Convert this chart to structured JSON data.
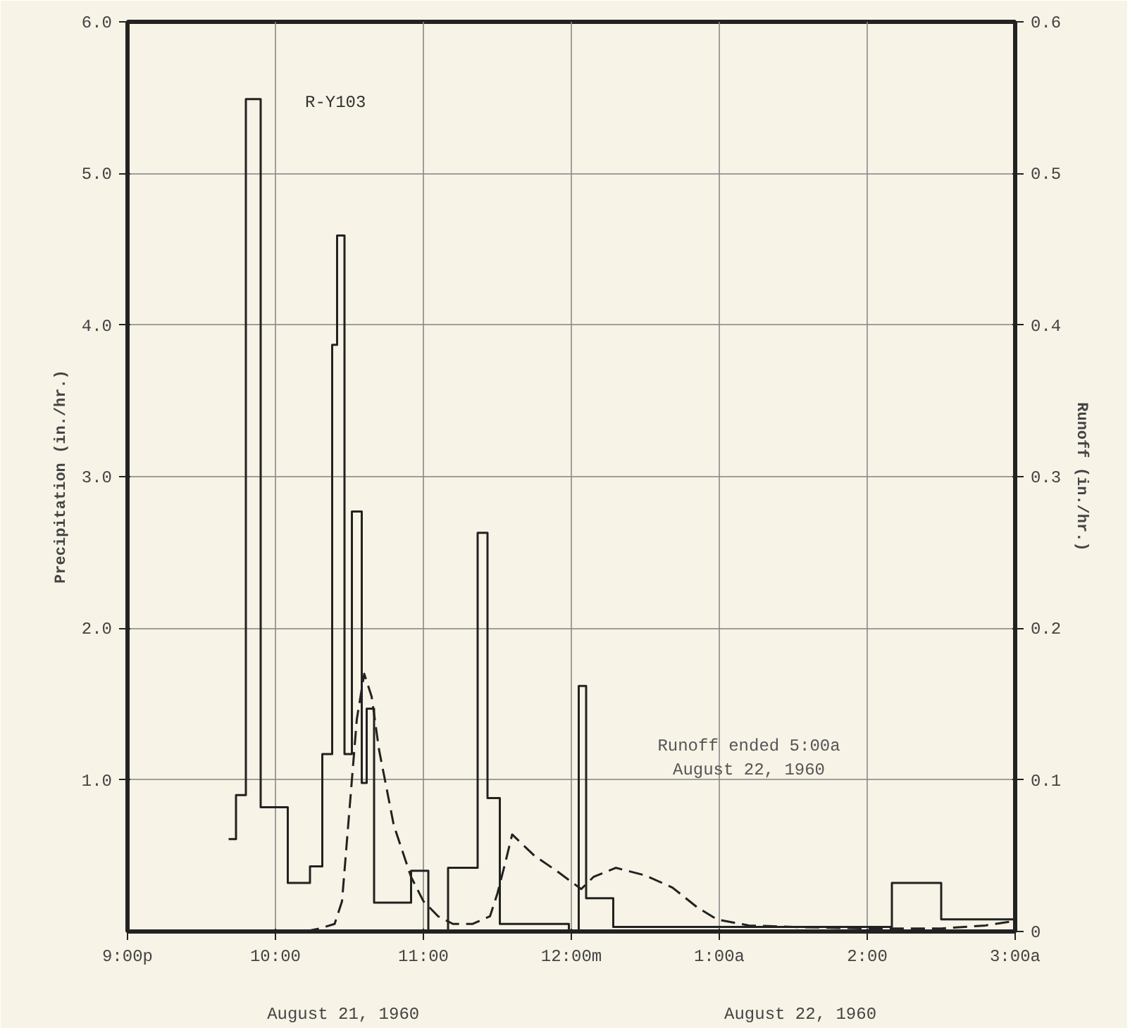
{
  "chart_data": {
    "type": "step",
    "ylabel": "Precipitation (in./hr.)",
    "y2label": "Runoff (in./hr.)",
    "annotations": [
      "R-Y103",
      "Runoff ended 5:00a\nAugust 22, 1960",
      "August 21, 1960",
      "August 22, 1960"
    ],
    "xlim": [
      "1960-08-21T21:00",
      "1960-08-22T03:00"
    ],
    "xticks": [
      {
        "value": "1960-08-21T21:00",
        "label": "9:00p"
      },
      {
        "value": "1960-08-21T22:00",
        "label": "10:00"
      },
      {
        "value": "1960-08-21T23:00",
        "label": "11:00"
      },
      {
        "value": "1960-08-22T00:00",
        "label": "12:00m"
      },
      {
        "value": "1960-08-22T01:00",
        "label": "1:00a"
      },
      {
        "value": "1960-08-22T02:00",
        "label": "2:00"
      },
      {
        "value": "1960-08-22T03:00",
        "label": "3:00a"
      }
    ],
    "ylim": [
      0,
      6
    ],
    "yticks": [
      {
        "value": 1,
        "label": "1.0"
      },
      {
        "value": 2,
        "label": "2.0"
      },
      {
        "value": 3,
        "label": "3.0"
      },
      {
        "value": 4,
        "label": "4.0"
      },
      {
        "value": 5,
        "label": "5.0"
      },
      {
        "value": 6,
        "label": "6.0"
      }
    ],
    "y2lim": [
      0,
      0.6
    ],
    "y2ticks": [
      0,
      0.1,
      0.2,
      0.3,
      0.4,
      0.5,
      0.6
    ],
    "grid": true,
    "series": [
      {
        "color": "#222222",
        "line_style": "solid",
        "x": [
          "1960-08-21T21:41",
          "1960-08-21T21:44",
          "1960-08-21T21:48",
          "1960-08-21T21:54",
          "1960-08-21T22:05",
          "1960-08-21T22:14",
          "1960-08-21T22:19",
          "1960-08-21T22:23",
          "1960-08-21T22:25",
          "1960-08-21T22:28",
          "1960-08-21T22:31",
          "1960-08-21T22:35",
          "1960-08-21T22:37",
          "1960-08-21T22:40",
          "1960-08-21T22:55",
          "1960-08-21T23:02",
          "1960-08-21T23:10",
          "1960-08-21T23:22",
          "1960-08-21T23:26",
          "1960-08-21T23:31",
          "1960-08-21T23:59",
          "1960-08-22T00:03",
          "1960-08-22T00:06",
          "1960-08-22T00:17",
          "1960-08-22T02:10",
          "1960-08-22T02:30",
          "1960-08-22T03:00"
        ],
        "values": [
          0.61,
          0.9,
          5.49,
          0.82,
          0.32,
          0.43,
          1.17,
          3.87,
          4.59,
          1.17,
          2.77,
          0.98,
          1.47,
          0.19,
          0.4,
          0,
          0.42,
          2.63,
          0.88,
          0.05,
          0,
          1.62,
          0.22,
          0.03,
          0.32,
          0.08,
          0.08
        ]
      },
      {
        "type": "line",
        "axis": "y2",
        "color": "#222222",
        "line_style": "dashed",
        "x": [
          "1960-08-21T22:12",
          "1960-08-21T22:18",
          "1960-08-21T22:24",
          "1960-08-21T22:27",
          "1960-08-21T22:30",
          "1960-08-21T22:33",
          "1960-08-21T22:36",
          "1960-08-21T22:39",
          "1960-08-21T22:42",
          "1960-08-21T22:48",
          "1960-08-21T22:55",
          "1960-08-21T23:00",
          "1960-08-21T23:06",
          "1960-08-21T23:12",
          "1960-08-21T23:20",
          "1960-08-21T23:27",
          "1960-08-21T23:30",
          "1960-08-21T23:33",
          "1960-08-21T23:36",
          "1960-08-21T23:45",
          "1960-08-21T23:54",
          "1960-08-22T00:04",
          "1960-08-22T00:09",
          "1960-08-22T00:18",
          "1960-08-22T00:30",
          "1960-08-22T00:41",
          "1960-08-22T00:51",
          "1960-08-22T00:59",
          "1960-08-22T01:12",
          "1960-08-22T01:30",
          "1960-08-22T02:00",
          "1960-08-22T02:30",
          "1960-08-22T02:48",
          "1960-08-22T03:00"
        ],
        "values": [
          0.0,
          0.002,
          0.005,
          0.02,
          0.08,
          0.14,
          0.17,
          0.155,
          0.12,
          0.07,
          0.036,
          0.02,
          0.01,
          0.005,
          0.005,
          0.01,
          0.025,
          0.044,
          0.064,
          0.05,
          0.04,
          0.028,
          0.036,
          0.042,
          0.037,
          0.029,
          0.016,
          0.008,
          0.004,
          0.003,
          0.002,
          0.002,
          0.004,
          0.007
        ]
      }
    ]
  }
}
